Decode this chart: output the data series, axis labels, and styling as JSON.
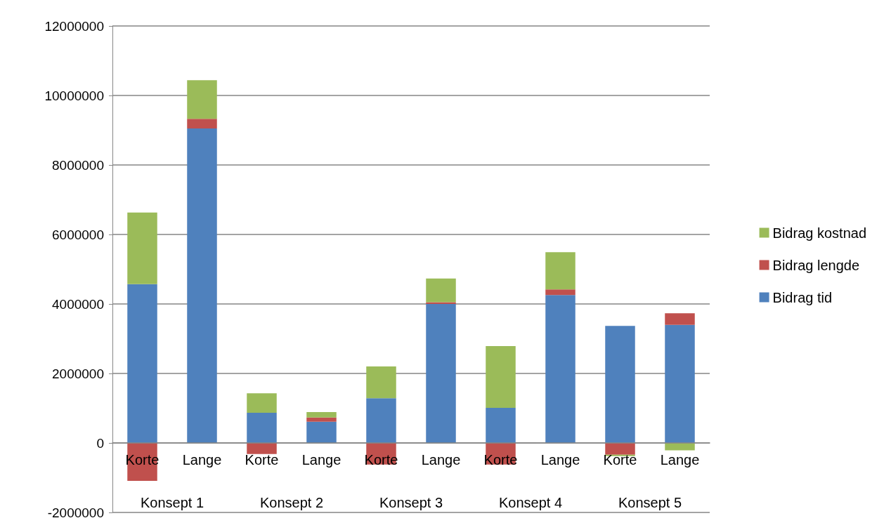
{
  "chart_data": {
    "type": "bar",
    "stacked": true,
    "categories": [
      "Korte",
      "Lange",
      "Korte",
      "Lange",
      "Korte",
      "Lange",
      "Korte",
      "Lange",
      "Korte",
      "Lange"
    ],
    "annotations": [
      "Konsept 1",
      "Konsept 2",
      "Konsept 3",
      "Konsept 4",
      "Konsept 5"
    ],
    "series": [
      {
        "name": "Bidrag tid",
        "color": "#4f81bd",
        "values": [
          4570000,
          9050000,
          870000,
          610000,
          1290000,
          4000000,
          1010000,
          4260000,
          3370000,
          3400000
        ]
      },
      {
        "name": "Bidrag lengde",
        "color": "#c0504d",
        "values": [
          -1090000,
          280000,
          -320000,
          120000,
          -620000,
          50000,
          -620000,
          160000,
          -340000,
          330000
        ]
      },
      {
        "name": "Bidrag kostnad",
        "color": "#9bbb59",
        "values": [
          2060000,
          1110000,
          560000,
          160000,
          910000,
          680000,
          1780000,
          1070000,
          -40000,
          -210000
        ]
      }
    ],
    "ylim": [
      -2000000,
      12000000
    ],
    "yticks": [
      -2000000,
      0,
      2000000,
      4000000,
      6000000,
      8000000,
      10000000,
      12000000
    ],
    "grid": "y",
    "legend": "right"
  }
}
